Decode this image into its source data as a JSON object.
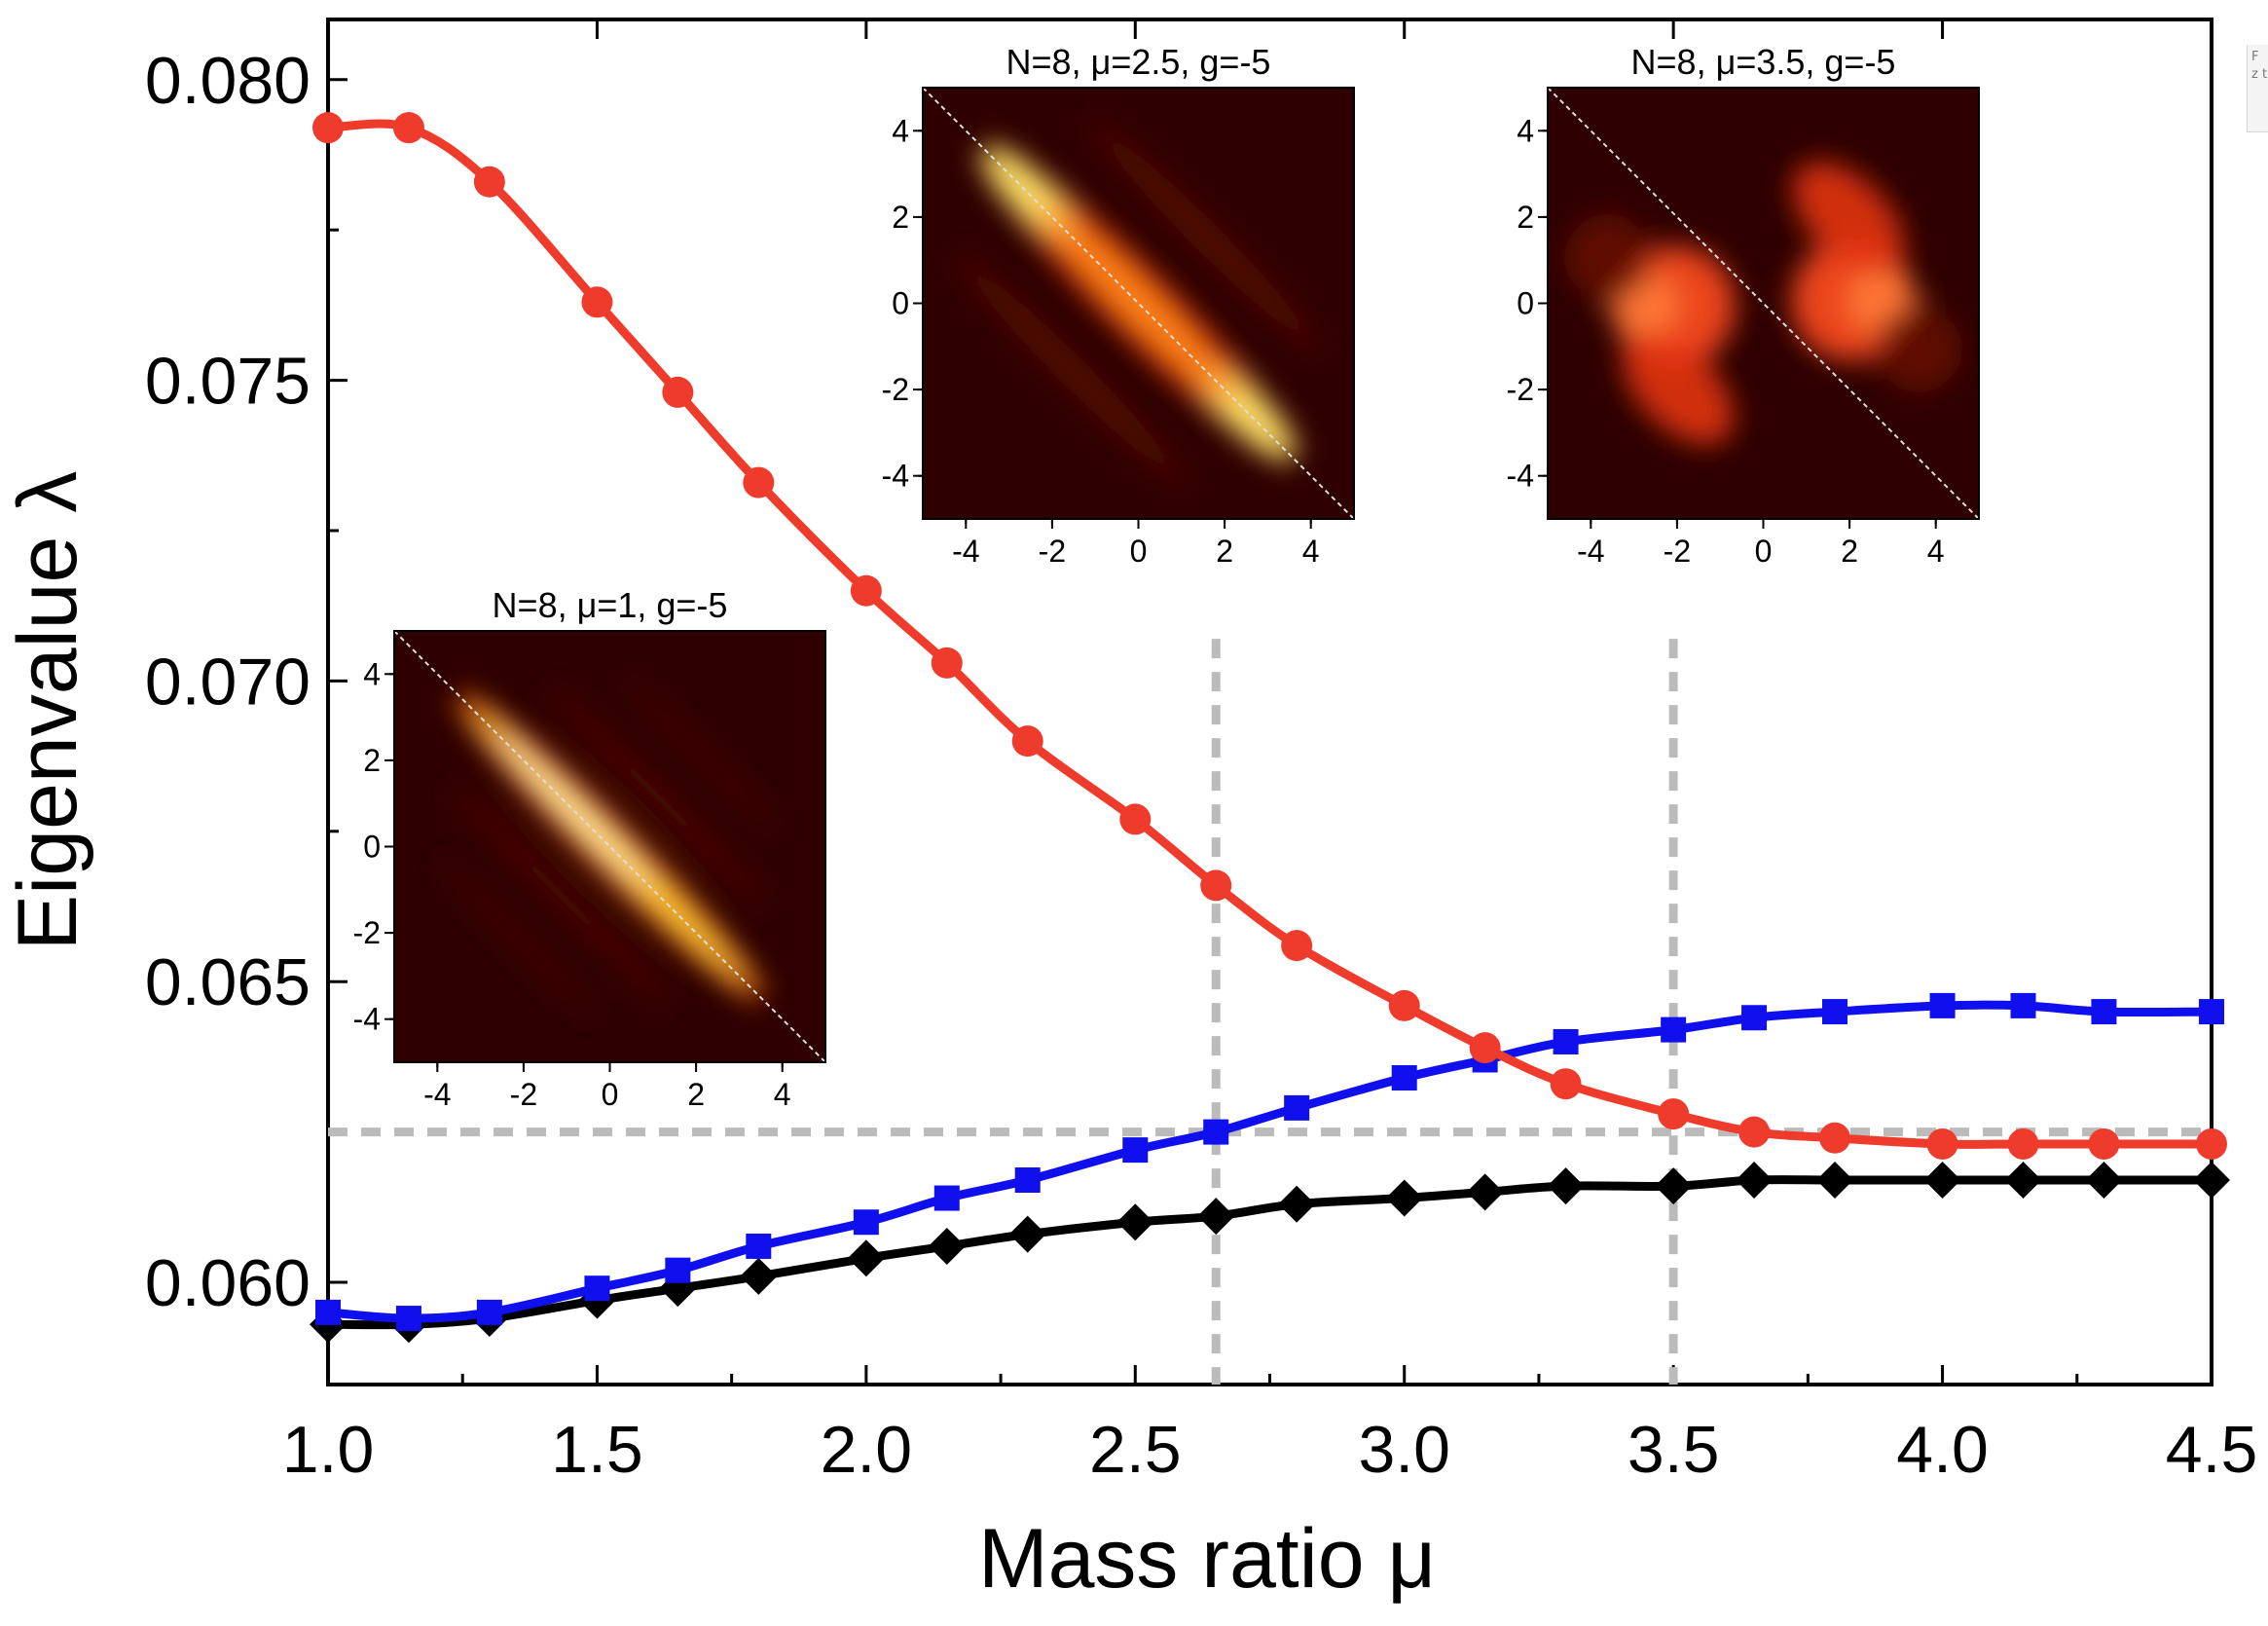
{
  "chart_data": {
    "type": "line",
    "title": "",
    "xlabel": "Mass ratio μ",
    "ylabel": "Eigenvalue λ",
    "xlim": [
      1.0,
      4.5
    ],
    "ylim": [
      0.0583,
      0.081
    ],
    "xticks": [
      1.0,
      1.5,
      2.0,
      2.5,
      3.0,
      3.5,
      4.0,
      4.5
    ],
    "xtick_labels": [
      "1.0",
      "1.5",
      "2.0",
      "2.5",
      "3.0",
      "3.5",
      "4.0",
      "4.5"
    ],
    "yticks": [
      0.06,
      0.065,
      0.07,
      0.075,
      0.08
    ],
    "ytick_labels": [
      "0.060",
      "0.065",
      "0.070",
      "0.075",
      "0.080"
    ],
    "grid": false,
    "x": [
      1.0,
      1.15,
      1.3,
      1.5,
      1.65,
      1.8,
      2.0,
      2.15,
      2.3,
      2.5,
      2.65,
      2.8,
      3.0,
      3.15,
      3.3,
      3.5,
      3.65,
      3.8,
      4.0,
      4.15,
      4.3,
      4.5
    ],
    "series": [
      {
        "name": "red",
        "color": "#ee3b2c",
        "marker": "circle",
        "values": [
          0.0792,
          0.0792,
          0.0783,
          0.0763,
          0.0748,
          0.0733,
          0.0715,
          0.0703,
          0.069,
          0.0677,
          0.0666,
          0.0656,
          0.0646,
          0.0639,
          0.0633,
          0.0628,
          0.0625,
          0.0624,
          0.0623,
          0.0623,
          0.0623,
          0.0623
        ]
      },
      {
        "name": "blue",
        "color": "#1010ee",
        "marker": "square",
        "values": [
          0.0595,
          0.0594,
          0.0595,
          0.0599,
          0.0602,
          0.0606,
          0.061,
          0.0614,
          0.0617,
          0.0622,
          0.0625,
          0.0629,
          0.0634,
          0.0637,
          0.064,
          0.0642,
          0.0644,
          0.0645,
          0.0646,
          0.0646,
          0.0645,
          0.0645
        ]
      },
      {
        "name": "black",
        "color": "#000000",
        "marker": "diamond",
        "values": [
          0.0593,
          0.0593,
          0.0594,
          0.0597,
          0.0599,
          0.0601,
          0.0604,
          0.0606,
          0.0608,
          0.061,
          0.0611,
          0.0613,
          0.0614,
          0.0615,
          0.0616,
          0.0616,
          0.0617,
          0.0617,
          0.0617,
          0.0617,
          0.0617,
          0.0617
        ]
      }
    ],
    "reference_lines": {
      "vertical": [
        2.65,
        3.5
      ],
      "horizontal": [
        0.0625
      ],
      "color": "#bbbbbb",
      "style": "dashed"
    },
    "insets": [
      {
        "title": "N=8, μ=1, g=-5",
        "type": "heatmap",
        "range": [
          -5,
          5
        ],
        "ticks": [
          -4,
          -2,
          0,
          2,
          4
        ],
        "tick_labels": [
          "-4",
          "-2",
          "0",
          "2",
          "4"
        ],
        "pattern": "diagonal-narrow"
      },
      {
        "title": "N=8, μ=2.5, g=-5",
        "type": "heatmap",
        "range": [
          -5,
          5
        ],
        "ticks": [
          -4,
          -2,
          0,
          2,
          4
        ],
        "tick_labels": [
          "-4",
          "-2",
          "0",
          "2",
          "4"
        ],
        "pattern": "diagonal-wide"
      },
      {
        "title": "N=8, μ=3.5, g=-5",
        "type": "heatmap",
        "range": [
          -5,
          5
        ],
        "ticks": [
          -4,
          -2,
          0,
          2,
          4
        ],
        "tick_labels": [
          "-4",
          "-2",
          "0",
          "2",
          "4"
        ],
        "pattern": "diagonal-split"
      }
    ]
  },
  "side_note": "F z t"
}
